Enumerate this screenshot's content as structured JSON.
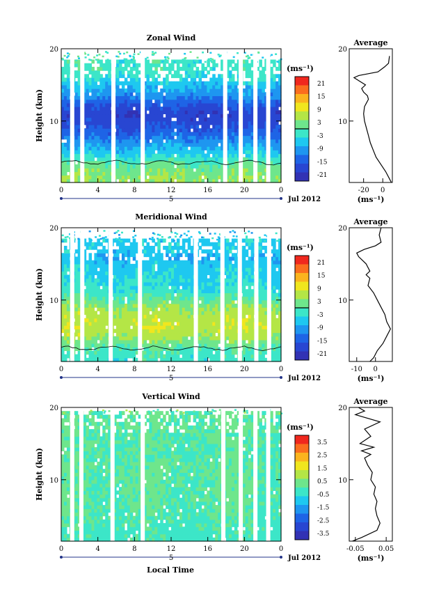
{
  "figure": {
    "x_axis_title": "Local Time",
    "date_label": "Jul 2012",
    "day_marker": "5"
  },
  "chart_data": [
    {
      "type": "heatmap",
      "title": "Zonal Wind",
      "ylabel": "Height (km)",
      "xlim": [
        0,
        24
      ],
      "ylim": [
        1.5,
        20
      ],
      "x_ticks": [
        "0",
        "4",
        "8",
        "12",
        "16",
        "20",
        "0"
      ],
      "y_ticks": [
        "10",
        "20"
      ],
      "colorbar": {
        "unit": "(ms⁻¹)",
        "range": [
          -24,
          24
        ],
        "tick_labels": [
          "21",
          "15",
          "9",
          "3",
          "-3",
          "-9",
          "-15",
          "-21"
        ]
      },
      "zero_contour": true,
      "data_gaps_hours": [
        1.2,
        2.3,
        5.7,
        8.9,
        17.9,
        19.6,
        21.2,
        22.6
      ],
      "profile_rows": [
        {
          "z": 2,
          "v": 4
        },
        {
          "z": 3,
          "v": 3
        },
        {
          "z": 4,
          "v": 1
        },
        {
          "z": 5,
          "v": -3
        },
        {
          "z": 6,
          "v": -7
        },
        {
          "z": 7,
          "v": -10
        },
        {
          "z": 8,
          "v": -13
        },
        {
          "z": 9,
          "v": -16
        },
        {
          "z": 10,
          "v": -18
        },
        {
          "z": 11,
          "v": -19
        },
        {
          "z": 12,
          "v": -17
        },
        {
          "z": 13,
          "v": -13
        },
        {
          "z": 14,
          "v": -9
        },
        {
          "z": 15,
          "v": -7
        },
        {
          "z": 16,
          "v": -4
        },
        {
          "z": 17,
          "v": -2
        }
      ],
      "average": {
        "title": "Average",
        "xlabel": "(ms⁻¹)",
        "xlim": [
          -35,
          10
        ],
        "x_ticks": [
          "-20",
          "0"
        ],
        "y_ticks": [
          "10",
          "20"
        ],
        "profile": [
          {
            "z": 1.5,
            "v": 9
          },
          {
            "z": 2,
            "v": 7
          },
          {
            "z": 3,
            "v": 3
          },
          {
            "z": 4,
            "v": -2
          },
          {
            "z": 5,
            "v": -7
          },
          {
            "z": 6,
            "v": -10
          },
          {
            "z": 7,
            "v": -13
          },
          {
            "z": 8,
            "v": -15
          },
          {
            "z": 9,
            "v": -17
          },
          {
            "z": 10,
            "v": -19
          },
          {
            "z": 11,
            "v": -20
          },
          {
            "z": 12,
            "v": -19
          },
          {
            "z": 12.5,
            "v": -17
          },
          {
            "z": 13,
            "v": -15
          },
          {
            "z": 13.5,
            "v": -16
          },
          {
            "z": 14,
            "v": -20
          },
          {
            "z": 14.5,
            "v": -22
          },
          {
            "z": 15,
            "v": -18
          },
          {
            "z": 15.5,
            "v": -24
          },
          {
            "z": 16,
            "v": -30
          },
          {
            "z": 16.3,
            "v": -25
          },
          {
            "z": 16.8,
            "v": -5
          },
          {
            "z": 17.5,
            "v": 2
          },
          {
            "z": 18,
            "v": 6
          },
          {
            "z": 19,
            "v": 7
          }
        ]
      }
    },
    {
      "type": "heatmap",
      "title": "Meridional Wind",
      "ylabel": "Height (km)",
      "xlim": [
        0,
        24
      ],
      "ylim": [
        1.5,
        20
      ],
      "x_ticks": [
        "0",
        "4",
        "8",
        "12",
        "16",
        "20",
        "0"
      ],
      "y_ticks": [
        "10",
        "20"
      ],
      "colorbar": {
        "unit": "(ms⁻¹)",
        "range": [
          -24,
          24
        ],
        "tick_labels": [
          "21",
          "15",
          "9",
          "3",
          "-3",
          "-9",
          "-15",
          "-21"
        ]
      },
      "zero_contour": true,
      "data_gaps_hours": [
        1.2,
        2.3,
        5.4,
        8.6,
        14.7,
        17.6,
        19.5,
        21.3,
        22.7
      ],
      "profile_rows": [
        {
          "z": 2,
          "v": -2
        },
        {
          "z": 3,
          "v": -1
        },
        {
          "z": 4,
          "v": 2
        },
        {
          "z": 5,
          "v": 5
        },
        {
          "z": 6,
          "v": 7
        },
        {
          "z": 7,
          "v": 7
        },
        {
          "z": 8,
          "v": 6
        },
        {
          "z": 9,
          "v": 4
        },
        {
          "z": 10,
          "v": 1
        },
        {
          "z": 11,
          "v": -2
        },
        {
          "z": 12,
          "v": -4
        },
        {
          "z": 13,
          "v": -4
        },
        {
          "z": 14,
          "v": -5
        },
        {
          "z": 15,
          "v": -6
        },
        {
          "z": 16,
          "v": -8
        },
        {
          "z": 17,
          "v": -5
        }
      ],
      "average": {
        "title": "Average",
        "xlabel": "(ms⁻¹)",
        "xlim": [
          -14,
          9
        ],
        "x_ticks": [
          "-10",
          "0"
        ],
        "y_ticks": [
          "10",
          "20"
        ],
        "profile": [
          {
            "z": 1.5,
            "v": -3
          },
          {
            "z": 2,
            "v": -1
          },
          {
            "z": 3,
            "v": 1
          },
          {
            "z": 4,
            "v": 4
          },
          {
            "z": 5,
            "v": 6
          },
          {
            "z": 6,
            "v": 8
          },
          {
            "z": 6.5,
            "v": 7
          },
          {
            "z": 7,
            "v": 6
          },
          {
            "z": 8,
            "v": 5
          },
          {
            "z": 9,
            "v": 3
          },
          {
            "z": 10,
            "v": 1
          },
          {
            "z": 11,
            "v": -1
          },
          {
            "z": 12,
            "v": -4
          },
          {
            "z": 13,
            "v": -3
          },
          {
            "z": 13.5,
            "v": -5
          },
          {
            "z": 14,
            "v": -3
          },
          {
            "z": 15,
            "v": -5
          },
          {
            "z": 15.5,
            "v": -7
          },
          {
            "z": 16,
            "v": -9
          },
          {
            "z": 16.5,
            "v": -10
          },
          {
            "z": 17,
            "v": -6
          },
          {
            "z": 17.5,
            "v": 0
          },
          {
            "z": 18,
            "v": 3
          },
          {
            "z": 19,
            "v": 2
          },
          {
            "z": 20,
            "v": 3
          }
        ]
      }
    },
    {
      "type": "heatmap",
      "title": "Vertical Wind",
      "ylabel": "Height (km)",
      "xlim": [
        0,
        24
      ],
      "ylim": [
        1.5,
        20
      ],
      "x_ticks": [
        "0",
        "4",
        "8",
        "12",
        "16",
        "20",
        "0"
      ],
      "y_ticks": [
        "10",
        "20"
      ],
      "colorbar": {
        "unit": "(ms⁻¹)",
        "range": [
          -4,
          4
        ],
        "tick_labels": [
          "3.5",
          "2.5",
          "1.5",
          "0.5",
          "-0.5",
          "-1.5",
          "-2.5",
          "-3.5"
        ]
      },
      "zero_contour": false,
      "data_gaps_hours": [
        1.2,
        2.2,
        5.6,
        8.9,
        17.7,
        19.6,
        21.2,
        22.6
      ],
      "profile_rows": [
        {
          "z": 2,
          "v": -0.2
        },
        {
          "z": 4,
          "v": -0.1
        },
        {
          "z": 6,
          "v": 0
        },
        {
          "z": 8,
          "v": 0.1
        },
        {
          "z": 10,
          "v": 0.1
        },
        {
          "z": 12,
          "v": 0.05
        },
        {
          "z": 14,
          "v": 0
        },
        {
          "z": 16,
          "v": 0.05
        },
        {
          "z": 18,
          "v": 0.1
        }
      ],
      "average": {
        "title": "Average",
        "xlabel": "(ms⁻¹)",
        "xlim": [
          -0.07,
          0.07
        ],
        "x_ticks": [
          "-0.05",
          "0.05"
        ],
        "y_ticks": [
          "10",
          "20"
        ],
        "profile": [
          {
            "z": 1.5,
            "v": -0.06
          },
          {
            "z": 2,
            "v": -0.03
          },
          {
            "z": 3,
            "v": 0.02
          },
          {
            "z": 4,
            "v": 0.03
          },
          {
            "z": 5,
            "v": 0.02
          },
          {
            "z": 6,
            "v": 0.015
          },
          {
            "z": 7,
            "v": 0.02
          },
          {
            "z": 8,
            "v": 0.01
          },
          {
            "z": 9,
            "v": 0.015
          },
          {
            "z": 10,
            "v": 0.0
          },
          {
            "z": 11,
            "v": 0.005
          },
          {
            "z": 12,
            "v": -0.01
          },
          {
            "z": 13,
            "v": -0.02
          },
          {
            "z": 13.5,
            "v": 0.0
          },
          {
            "z": 14,
            "v": -0.03
          },
          {
            "z": 14.5,
            "v": 0.01
          },
          {
            "z": 15,
            "v": -0.035
          },
          {
            "z": 16,
            "v": 0.0
          },
          {
            "z": 17,
            "v": -0.02
          },
          {
            "z": 18,
            "v": 0.03
          },
          {
            "z": 19,
            "v": -0.05
          },
          {
            "z": 19.5,
            "v": -0.02
          },
          {
            "z": 20,
            "v": -0.04
          }
        ]
      }
    }
  ]
}
